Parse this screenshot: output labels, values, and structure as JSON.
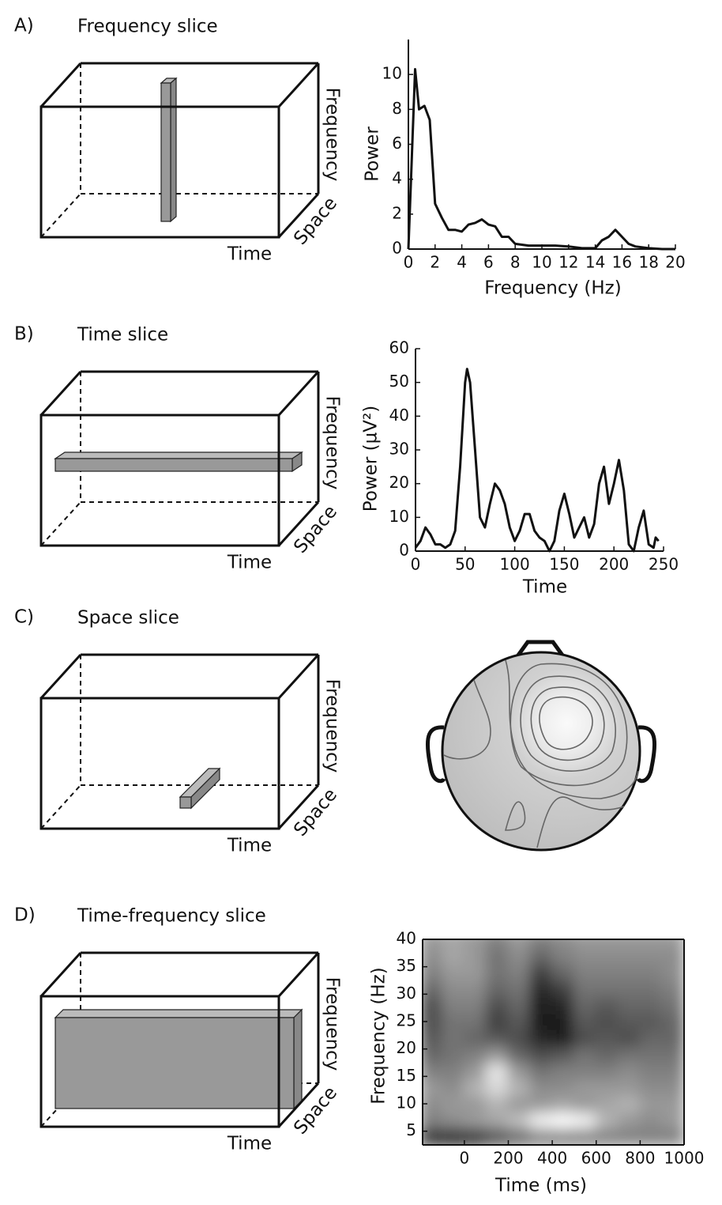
{
  "panels": [
    {
      "label": "A)",
      "title": "Frequency slice",
      "cube_axes": [
        "Frequency",
        "Space",
        "Time"
      ]
    },
    {
      "label": "B)",
      "title": "Time slice",
      "cube_axes": [
        "Frequency",
        "Space",
        "Time"
      ]
    },
    {
      "label": "C)",
      "title": "Space slice",
      "cube_axes": [
        "Frequency",
        "Space",
        "Time"
      ]
    },
    {
      "label": "D)",
      "title": "Time-frequency slice",
      "cube_axes": [
        "Frequency",
        "Space",
        "Time"
      ]
    }
  ],
  "chart_data": [
    {
      "type": "line",
      "xlabel": "Frequency (Hz)",
      "ylabel": "Power",
      "color": "#111111",
      "x": [
        0,
        0.5,
        0.8,
        1.2,
        1.6,
        2,
        2.5,
        3,
        3.5,
        4,
        4.5,
        5,
        5.5,
        6,
        6.5,
        7,
        7.5,
        8,
        9,
        10,
        11,
        12,
        13,
        14,
        14.5,
        15,
        15.5,
        16,
        16.5,
        17,
        18,
        19,
        20
      ],
      "values": [
        0,
        10.3,
        8,
        8.2,
        7.4,
        2.6,
        1.8,
        1.1,
        1.1,
        1,
        1.4,
        1.5,
        1.7,
        1.4,
        1.3,
        0.7,
        0.7,
        0.3,
        0.2,
        0.2,
        0.2,
        0.15,
        0.05,
        0.05,
        0.5,
        0.7,
        1.1,
        0.7,
        0.3,
        0.15,
        0.05,
        0,
        0
      ],
      "xlim": [
        0,
        20
      ],
      "xticks": [
        0,
        2,
        4,
        6,
        8,
        10,
        12,
        14,
        16,
        18,
        20
      ],
      "ylim": [
        0,
        12
      ],
      "yticks": [
        0,
        2,
        4,
        6,
        8,
        10
      ],
      "box": false
    },
    {
      "type": "line",
      "xlabel": "Time",
      "ylabel": "Power (µV²)",
      "color": "#111111",
      "x": [
        0,
        5,
        10,
        15,
        20,
        25,
        30,
        35,
        40,
        45,
        50,
        52,
        55,
        60,
        65,
        70,
        75,
        80,
        85,
        90,
        95,
        100,
        105,
        110,
        115,
        120,
        125,
        130,
        135,
        140,
        145,
        150,
        155,
        160,
        165,
        170,
        175,
        180,
        185,
        190,
        195,
        200,
        205,
        210,
        215,
        220,
        225,
        230,
        235,
        240,
        242,
        245
      ],
      "values": [
        1,
        3,
        7,
        5,
        2,
        2,
        1,
        2,
        6,
        25,
        50,
        54,
        50,
        30,
        10,
        7,
        14,
        20,
        18,
        14,
        7,
        3,
        6,
        11,
        11,
        6,
        4,
        3,
        0,
        3,
        12,
        17,
        11,
        4,
        7,
        10,
        4,
        8,
        20,
        25,
        14,
        20,
        27,
        18,
        2,
        0,
        7,
        12,
        2,
        1,
        4,
        3
      ],
      "xlim": [
        0,
        250
      ],
      "xticks": [
        0,
        50,
        100,
        150,
        200,
        250
      ],
      "ylim": [
        0,
        60
      ],
      "yticks": [
        0,
        10,
        20,
        30,
        40,
        50,
        60
      ],
      "box": false
    },
    {
      "type": "heatmap",
      "xlabel": "Time (ms)",
      "ylabel": "Frequency (Hz)",
      "x": [
        -150,
        -50,
        50,
        150,
        250,
        350,
        450,
        550,
        650,
        750,
        850,
        950
      ],
      "y": [
        4,
        7,
        10,
        13,
        16,
        19,
        22,
        25,
        28,
        31,
        34,
        37,
        40
      ],
      "z": [
        [
          0.15,
          0.1,
          0.15,
          0.3,
          0.4,
          0.5,
          0.5,
          0.5,
          0.5,
          0.5,
          0.5,
          0.5
        ],
        [
          0.5,
          0.55,
          0.6,
          0.65,
          0.75,
          0.95,
          1.0,
          0.95,
          0.7,
          0.6,
          0.55,
          0.6
        ],
        [
          0.55,
          0.6,
          0.6,
          0.7,
          0.6,
          0.6,
          0.65,
          0.6,
          0.65,
          0.7,
          0.6,
          0.6
        ],
        [
          0.6,
          0.55,
          0.7,
          0.85,
          0.7,
          0.55,
          0.55,
          0.6,
          0.6,
          0.6,
          0.55,
          0.55
        ],
        [
          0.5,
          0.5,
          0.6,
          0.9,
          0.6,
          0.45,
          0.5,
          0.5,
          0.5,
          0.55,
          0.5,
          0.5
        ],
        [
          0.4,
          0.45,
          0.5,
          0.6,
          0.4,
          0.3,
          0.35,
          0.45,
          0.4,
          0.45,
          0.45,
          0.45
        ],
        [
          0.35,
          0.45,
          0.4,
          0.35,
          0.3,
          0.15,
          0.1,
          0.3,
          0.35,
          0.3,
          0.4,
          0.4
        ],
        [
          0.3,
          0.45,
          0.45,
          0.25,
          0.35,
          0.1,
          0.1,
          0.35,
          0.3,
          0.35,
          0.35,
          0.4
        ],
        [
          0.3,
          0.5,
          0.5,
          0.3,
          0.4,
          0.1,
          0.15,
          0.4,
          0.35,
          0.4,
          0.4,
          0.45
        ],
        [
          0.4,
          0.55,
          0.55,
          0.4,
          0.45,
          0.15,
          0.25,
          0.45,
          0.45,
          0.45,
          0.45,
          0.5
        ],
        [
          0.5,
          0.6,
          0.6,
          0.45,
          0.5,
          0.25,
          0.4,
          0.5,
          0.5,
          0.5,
          0.5,
          0.55
        ],
        [
          0.55,
          0.65,
          0.6,
          0.45,
          0.55,
          0.4,
          0.5,
          0.55,
          0.55,
          0.55,
          0.55,
          0.55
        ],
        [
          0.6,
          0.65,
          0.6,
          0.5,
          0.6,
          0.5,
          0.55,
          0.6,
          0.6,
          0.6,
          0.6,
          0.6
        ]
      ],
      "xlim": [
        -190,
        1000
      ],
      "xticks": [
        0,
        200,
        400,
        600,
        800,
        1000
      ],
      "ylim": [
        2.5,
        40
      ],
      "yticks": [
        5,
        10,
        15,
        20,
        25,
        30,
        35,
        40
      ],
      "box": true
    }
  ]
}
